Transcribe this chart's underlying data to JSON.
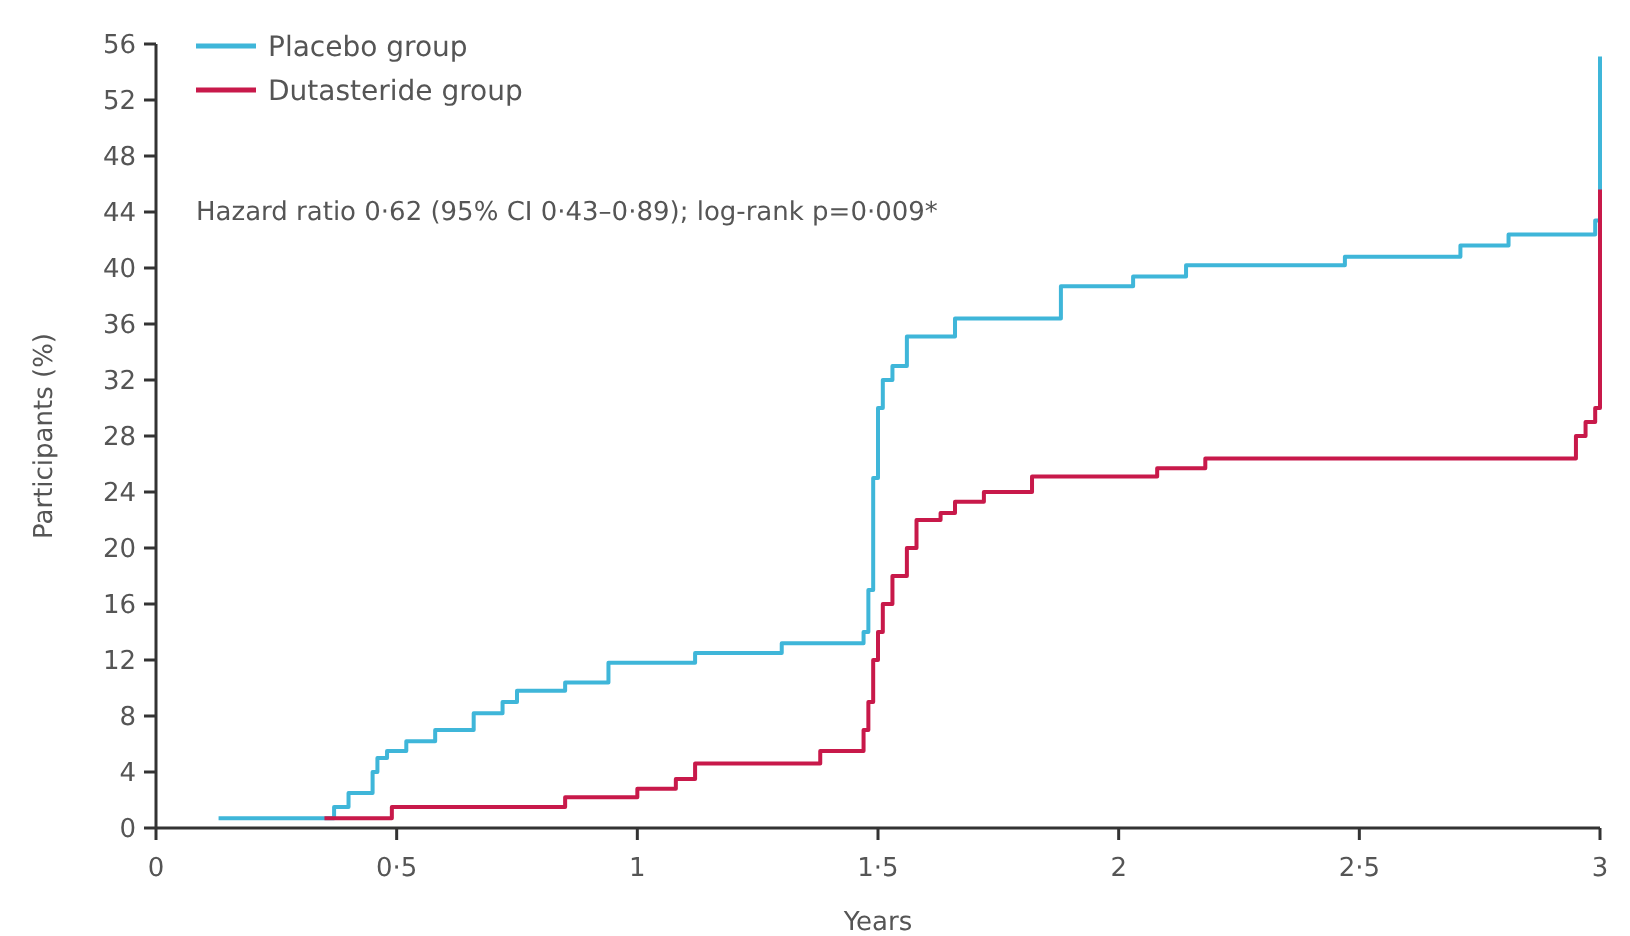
{
  "chart_data": {
    "type": "step",
    "xlabel": "Years",
    "ylabel": "Participants (%)",
    "xlim": [
      0,
      3
    ],
    "ylim": [
      0,
      56
    ],
    "xticks": [
      0,
      {
        "value": 0.5,
        "label": "0·5"
      },
      1,
      {
        "value": 1.5,
        "label": "1·5"
      },
      2,
      {
        "value": 2.5,
        "label": "2·5"
      },
      3
    ],
    "yticks": [
      0,
      4,
      8,
      12,
      16,
      20,
      24,
      28,
      32,
      36,
      40,
      44,
      48,
      52,
      56
    ],
    "legend": "top left",
    "marker": "none",
    "line_style": "solid",
    "annotations": [
      "Hazard ratio 0·62 (95% CI 0·43–0·89); log-rank p=0·009*"
    ],
    "series": [
      {
        "name": "Placebo group",
        "color": "#3fb6d9",
        "x": [
          0.13,
          0.37,
          0.4,
          0.45,
          0.46,
          0.48,
          0.52,
          0.58,
          0.66,
          0.72,
          0.75,
          0.85,
          0.94,
          1.12,
          1.3,
          1.47,
          1.48,
          1.49,
          1.5,
          1.51,
          1.53,
          1.56,
          1.66,
          1.88,
          2.03,
          2.14,
          2.47,
          2.71,
          2.81,
          2.99,
          3.0,
          3.0
        ],
        "values": [
          0.7,
          1.5,
          2.5,
          4,
          5,
          5.5,
          6.2,
          7,
          8.2,
          9,
          9.8,
          10.4,
          11.8,
          12.5,
          13.2,
          14,
          17,
          25,
          30,
          32,
          33,
          35.1,
          36.4,
          38.7,
          39.4,
          40.2,
          40.8,
          41.6,
          42.4,
          43.4,
          55.1,
          55.1
        ]
      },
      {
        "name": "Dutasteride group",
        "color": "#c8194a",
        "x": [
          0.35,
          0.49,
          0.85,
          1.0,
          1.08,
          1.12,
          1.38,
          1.47,
          1.48,
          1.49,
          1.5,
          1.51,
          1.53,
          1.56,
          1.58,
          1.63,
          1.66,
          1.72,
          1.82,
          2.08,
          2.18,
          2.95,
          2.97,
          2.99,
          3.0,
          3.0
        ],
        "values": [
          0.7,
          1.5,
          2.2,
          2.8,
          3.5,
          4.6,
          5.5,
          7,
          9,
          12,
          14,
          16,
          18,
          20,
          22,
          22.5,
          23.3,
          24,
          25.1,
          25.7,
          26.4,
          28,
          29,
          30,
          33,
          45.6
        ]
      }
    ]
  }
}
